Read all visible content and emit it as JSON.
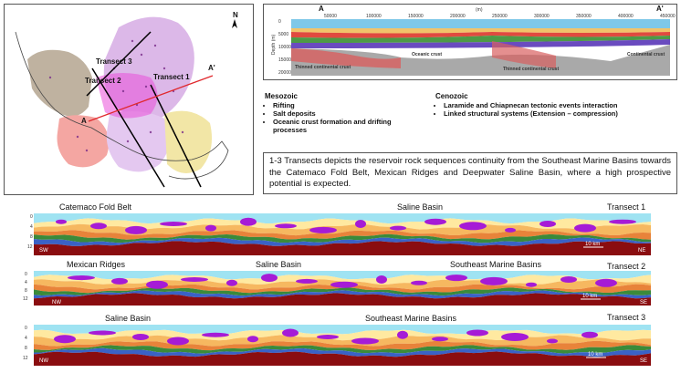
{
  "map": {
    "transect_labels": [
      "Transect 3",
      "Transect 2",
      "Transect 1"
    ],
    "point_labels": [
      "A",
      "A'"
    ]
  },
  "crust_section": {
    "start_label": "A",
    "end_label": "A'",
    "x_unit": "(m)",
    "x_ticks": [
      "50000",
      "100000",
      "150000",
      "200000",
      "250000",
      "300000",
      "350000",
      "400000",
      "450000"
    ],
    "y_label": "Depth (m)",
    "y_ticks": [
      "0",
      "5000",
      "10000",
      "15000",
      "20000"
    ],
    "labels": [
      "Thinned continental crust",
      "Oceanic crust",
      "Thinned continental crust",
      "Continental crust"
    ]
  },
  "mesozoic": {
    "title": "Mesozoic",
    "items": [
      "Rifting",
      "Salt deposits",
      "Oceanic crust formation and drifting processes"
    ]
  },
  "cenozoic": {
    "title": "Cenozoic",
    "items": [
      "Laramide and Chiapnecan tectonic events interaction",
      "Linked structural systems (Extension – compression)"
    ]
  },
  "description": "1-3 Transects depicts the reservoir rock sequences continuity from the Southeast Marine Basins towards the Catemaco Fold Belt, Mexican Ridges and Deepwater Saline Basin, where a high prospective potential is expected.",
  "transects": [
    {
      "name": "Transect 1",
      "labels": [
        "Catemaco Fold Belt",
        "Saline Basin"
      ],
      "left_end": "SW",
      "right_end": "NE",
      "scale": "10 km",
      "depth_ticks": [
        "0",
        "4",
        "8",
        "12"
      ]
    },
    {
      "name": "Transect 2",
      "labels": [
        "Mexican Ridges",
        "Saline Basin",
        "Southeast Marine Basins"
      ],
      "left_end": "NW",
      "right_end": "SE",
      "scale": "10 km",
      "depth_ticks": [
        "0",
        "4",
        "8",
        "12"
      ]
    },
    {
      "name": "Transect 3",
      "labels": [
        "Saline Basin",
        "Southeast Marine Basins"
      ],
      "left_end": "NW",
      "right_end": "SE",
      "scale": "10 km",
      "depth_ticks": [
        "0",
        "4",
        "8",
        "12"
      ]
    }
  ]
}
